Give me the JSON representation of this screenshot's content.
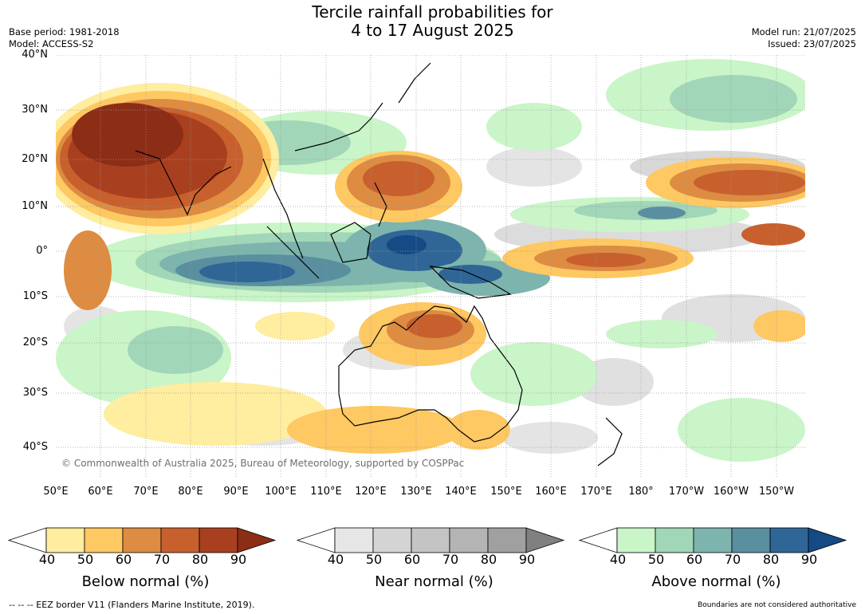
{
  "title_line1": "Tercile rainfall probabilities for",
  "title_line2": "4 to 17 August 2025",
  "base_period": "Base period: 1981-2018",
  "model": "Model: ACCESS-S2",
  "model_run": "Model run: 21/07/2025",
  "issued": "Issued: 23/07/2025",
  "copyright": "© Commonwealth of Australia 2025, Bureau of Meteorology, supported by COSPPac",
  "lat_labels": [
    "40°N",
    "30°N",
    "20°N",
    "10°N",
    "0°",
    "10°S",
    "20°S",
    "30°S",
    "40°S"
  ],
  "lon_labels": [
    "50°E",
    "60°E",
    "70°E",
    "80°E",
    "90°E",
    "100°E",
    "110°E",
    "120°E",
    "130°E",
    "140°E",
    "150°E",
    "160°E",
    "170°E",
    "180°",
    "170°W",
    "160°W",
    "150°W"
  ],
  "legends": [
    {
      "label": "Below normal (%)",
      "ticks": [
        "40",
        "50",
        "60",
        "70",
        "80",
        "90"
      ],
      "colors": [
        "#ffffff",
        "#ffeda0",
        "#fec862",
        "#dd8c42",
        "#c8602e",
        "#a8401f",
        "#8c2d16"
      ]
    },
    {
      "label": "Near normal (%)",
      "ticks": [
        "40",
        "50",
        "60",
        "70",
        "80",
        "90"
      ],
      "colors": [
        "#ffffff",
        "#e6e6e6",
        "#d4d4d4",
        "#c4c4c4",
        "#b4b4b4",
        "#a0a0a0",
        "#808080"
      ]
    },
    {
      "label": "Above normal (%)",
      "ticks": [
        "40",
        "50",
        "60",
        "70",
        "80",
        "90"
      ],
      "colors": [
        "#ffffff",
        "#c9f5c8",
        "#a1d6b8",
        "#7db4ad",
        "#5a8fa0",
        "#2f6696",
        "#154a84"
      ]
    }
  ],
  "footer_left": "-- -- -- EEZ border V11 (Flanders Marine Institute, 2019).",
  "footer_right": "Boundaries are not considered authoritative"
}
